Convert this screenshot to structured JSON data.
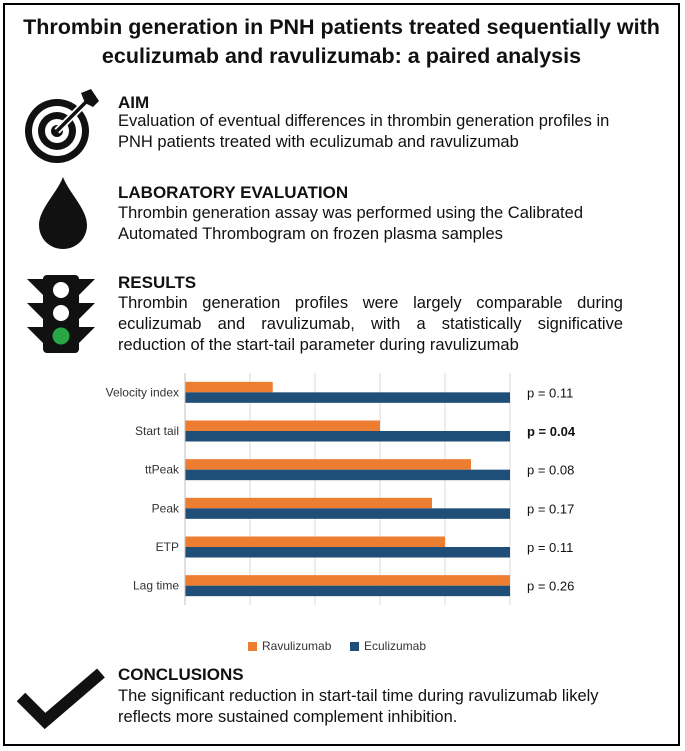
{
  "title": "Thrombin generation in PNH patients treated sequentially with eculizumab and ravulizumab: a paired analysis",
  "sections": {
    "aim": {
      "heading": "AIM",
      "text": "Evaluation of eventual differences in thrombin generation profiles in PNH patients treated with eculizumab and ravulizumab",
      "icon": "target-icon"
    },
    "lab": {
      "heading": "LABORATORY EVALUATION",
      "text": "Thrombin generation assay was performed using the Calibrated Automated Thrombogram on frozen plasma samples",
      "icon": "drop-icon"
    },
    "results": {
      "heading": "RESULTS",
      "text": "Thrombin generation profiles were largely comparable during eculizumab and ravulizumab, with a statistically significative reduction of the start-tail parameter during ravulizumab",
      "icon": "traffic-light-icon"
    },
    "conclusions": {
      "heading": "CONCLUSIONS",
      "text": "The significant reduction in start-tail time during ravulizumab likely reflects more sustained complement inhibition.",
      "icon": "checkmark-icon"
    }
  },
  "chart_data": {
    "type": "bar",
    "orientation": "horizontal",
    "categories": [
      "Velocity index",
      "Start tail",
      "ttPeak",
      "Peak",
      "ETP",
      "Lag time"
    ],
    "series": [
      {
        "name": "Ravulizumab",
        "color": "#ED7D31",
        "values": [
          0.27,
          0.6,
          0.88,
          0.76,
          0.8,
          1.0
        ]
      },
      {
        "name": "Eculizumab",
        "color": "#1F4E79",
        "values": [
          1.0,
          1.0,
          1.0,
          1.0,
          1.0,
          1.0
        ]
      }
    ],
    "p_values": [
      "p = 0.11",
      "p = 0.04",
      "p = 0.08",
      "p = 0.17",
      "p = 0.11",
      "p = 0.26"
    ],
    "p_bold": [
      false,
      true,
      false,
      false,
      false,
      false
    ],
    "xlim": [
      0,
      1
    ],
    "grid": true,
    "legend_position": "bottom"
  }
}
